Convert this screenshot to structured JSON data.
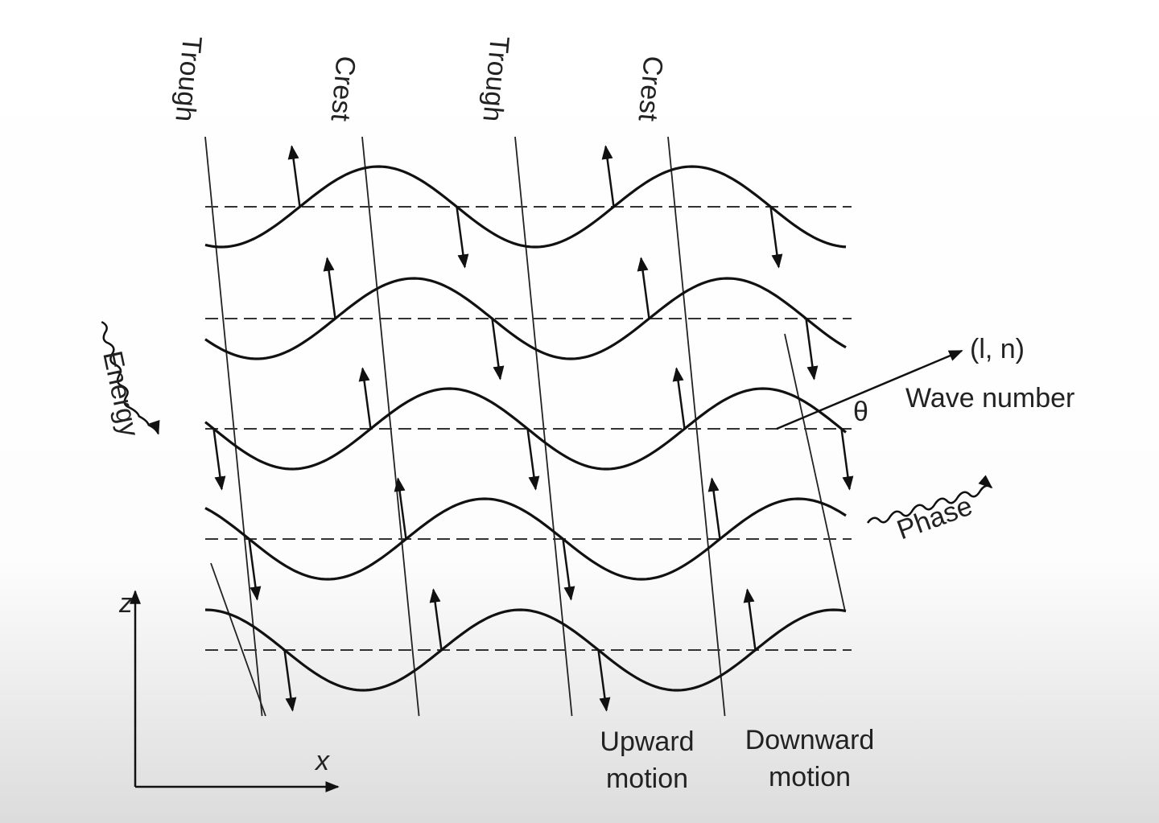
{
  "labels": {
    "trough_1": "Trough",
    "crest_1": "Crest",
    "trough_2": "Trough",
    "crest_2": "Crest",
    "wave_vector": "(l, n)",
    "wave_number": "Wave number",
    "angle": "θ",
    "energy": "Energy",
    "phase": "Phase",
    "upward": "Upward motion",
    "downward": "Downward motion",
    "z_axis": "z",
    "x_axis": "x"
  }
}
